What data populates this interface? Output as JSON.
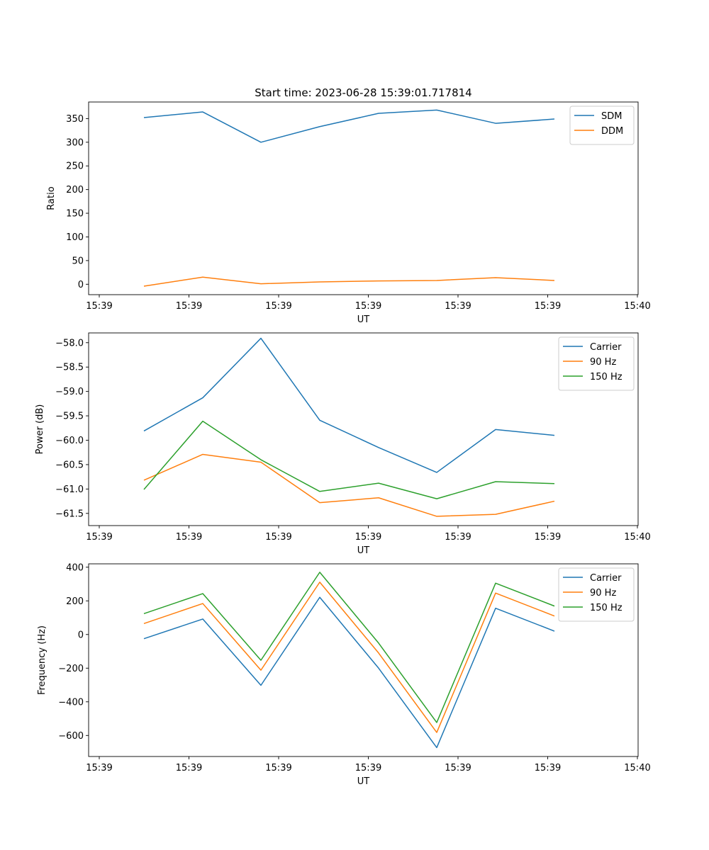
{
  "title": "Start time: 2023-06-28 15:39:01.717814",
  "colors": {
    "blue": "#1f77b4",
    "orange": "#ff7f0e",
    "green": "#2ca02c"
  },
  "chart_data": [
    {
      "type": "line",
      "xlabel": "UT",
      "ylabel": "Ratio",
      "x_tick_labels": [
        "15:39",
        "15:39",
        "15:39",
        "15:39",
        "15:39",
        "15:39",
        "15:40"
      ],
      "y_ticks": [
        0,
        50,
        100,
        150,
        200,
        250,
        300,
        350
      ],
      "y_tick_labels": [
        "0",
        "50",
        "100",
        "150",
        "200",
        "250",
        "300",
        "350"
      ],
      "ylim": [
        -22,
        385
      ],
      "legend_position": "top-right",
      "series": [
        {
          "name": "SDM",
          "color": "#1f77b4",
          "values": [
            352,
            364,
            300,
            333,
            361,
            368,
            340,
            349
          ]
        },
        {
          "name": "DDM",
          "color": "#ff7f0e",
          "values": [
            -4,
            15,
            1,
            5,
            7,
            8,
            14,
            8
          ]
        }
      ]
    },
    {
      "type": "line",
      "xlabel": "UT",
      "ylabel": "Power (dB)",
      "x_tick_labels": [
        "15:39",
        "15:39",
        "15:39",
        "15:39",
        "15:39",
        "15:39",
        "15:40"
      ],
      "y_ticks": [
        -61.5,
        -61.0,
        -60.5,
        -60.0,
        -59.5,
        -59.0,
        -58.5,
        -58.0
      ],
      "y_tick_labels": [
        "−61.5",
        "−61.0",
        "−60.5",
        "−60.0",
        "−59.5",
        "−59.0",
        "−58.5",
        "−58.0"
      ],
      "ylim": [
        -61.75,
        -57.8
      ],
      "legend_position": "top-right",
      "series": [
        {
          "name": "Carrier",
          "color": "#1f77b4",
          "values": [
            -59.81,
            -59.13,
            -57.91,
            -59.59,
            -60.15,
            -60.66,
            -59.78,
            -59.9
          ]
        },
        {
          "name": "90 Hz",
          "color": "#ff7f0e",
          "values": [
            -60.82,
            -60.29,
            -60.45,
            -61.28,
            -61.18,
            -61.56,
            -61.52,
            -61.25
          ]
        },
        {
          "name": "150 Hz",
          "color": "#2ca02c",
          "values": [
            -61.01,
            -59.61,
            -60.4,
            -61.05,
            -60.88,
            -61.2,
            -60.85,
            -60.89
          ]
        }
      ]
    },
    {
      "type": "line",
      "xlabel": "UT",
      "ylabel": "Frequency (Hz)",
      "x_tick_labels": [
        "15:39",
        "15:39",
        "15:39",
        "15:39",
        "15:39",
        "15:39",
        "15:40"
      ],
      "y_ticks": [
        -600,
        -400,
        -200,
        0,
        200,
        400
      ],
      "y_tick_labels": [
        "−600",
        "−400",
        "−200",
        "0",
        "200",
        "400"
      ],
      "ylim": [
        -725,
        420
      ],
      "legend_position": "top-right",
      "series": [
        {
          "name": "Carrier",
          "color": "#1f77b4",
          "values": [
            -25,
            92,
            -302,
            221,
            -200,
            -672,
            156,
            20
          ]
        },
        {
          "name": "90 Hz",
          "color": "#ff7f0e",
          "values": [
            65,
            184,
            -212,
            311,
            -110,
            -582,
            246,
            110
          ]
        },
        {
          "name": "150 Hz",
          "color": "#2ca02c",
          "values": [
            124,
            243,
            -153,
            370,
            -51,
            -523,
            305,
            169
          ]
        }
      ]
    }
  ]
}
